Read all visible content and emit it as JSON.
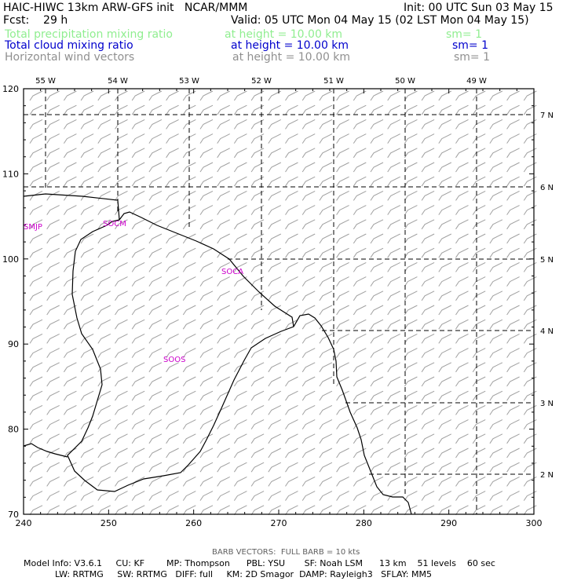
{
  "header": {
    "title": "HAIC-HIWC 13km ARW-GFS init   NCAR/MMM",
    "init": "Init: 00 UTC Sun 03 May 15",
    "fcst": "Fcst:    29 h",
    "valid": "Valid: 05 UTC Mon 04 May 15 (02 LST Mon 04 May 15)",
    "fields": [
      {
        "name": "Total precipitation mixing ratio",
        "level": "at height = 10.00 km",
        "sm": "sm= 1",
        "color": "#90ee90"
      },
      {
        "name": "Total cloud mixing ratio",
        "level": "at height = 10.00 km",
        "sm": "sm= 1",
        "color": "#0000cc"
      },
      {
        "name": "Horizontal wind vectors",
        "level": "at height = 10.00 km",
        "sm": "sm= 1",
        "color": "#909090"
      }
    ]
  },
  "map": {
    "top_lon_labels": [
      "55 W",
      "54 W",
      "53 W",
      "52 W",
      "51 W",
      "50 W",
      "49 W"
    ],
    "right_lat_labels": [
      "7 N",
      "6 N",
      "5 N",
      "4 N",
      "3 N",
      "2 N"
    ],
    "bottom_ticks": [
      "240",
      "250",
      "260",
      "270",
      "280",
      "290",
      "300"
    ],
    "left_ticks": [
      "120",
      "110",
      "100",
      "90",
      "80",
      "70"
    ],
    "stations": [
      "SMJP",
      "SOCM",
      "SOCA",
      "SOOS"
    ],
    "colors": {
      "station": "#cc00cc",
      "barb": "#a0a0a0",
      "grid": "#000000",
      "coast": "#000000"
    }
  },
  "footer": {
    "barb_note": "BARB VECTORS:  FULL BARB = 10 kts",
    "line1": "Model Info: V3.6.1     CU: KF        MP: Thompson      PBL: YSU       SF: Noah LSM      13 km    51 levels    60 sec",
    "line2": "LW: RRTMG     SW: RRTMG   DIFF: full     KM: 2D Smagor  DAMP: Rayleigh3   SFLAY: MM5"
  }
}
